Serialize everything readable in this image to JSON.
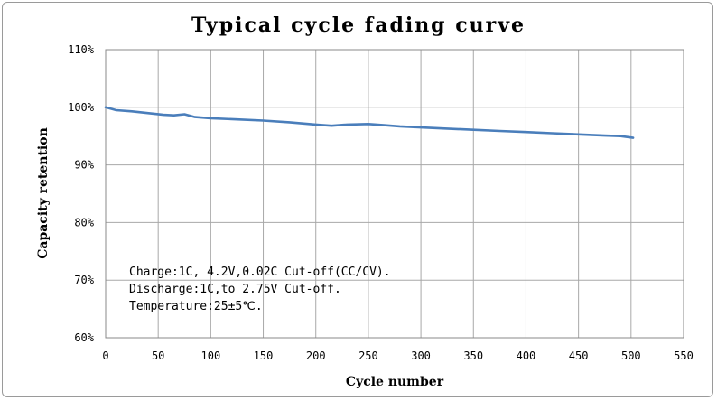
{
  "chart_data": {
    "type": "line",
    "title": "Typical cycle fading curve",
    "xlabel": "Cycle number",
    "ylabel": "Capacity retention",
    "xlim": [
      0,
      550
    ],
    "ylim": [
      60,
      110
    ],
    "x_ticks": [
      0,
      50,
      100,
      150,
      200,
      250,
      300,
      350,
      400,
      450,
      500,
      550
    ],
    "y_ticks": [
      60,
      70,
      80,
      90,
      100,
      110
    ],
    "y_tick_labels": [
      "60%",
      "70%",
      "80%",
      "90%",
      "100%",
      "110%"
    ],
    "grid": true,
    "series": [
      {
        "name": "Capacity retention",
        "color": "#4a7ebb",
        "x": [
          0,
          10,
          25,
          40,
          55,
          65,
          75,
          85,
          100,
          125,
          150,
          175,
          200,
          215,
          230,
          250,
          265,
          280,
          300,
          325,
          350,
          375,
          400,
          425,
          450,
          475,
          490,
          502
        ],
        "y": [
          100.0,
          99.5,
          99.3,
          99.0,
          98.7,
          98.6,
          98.8,
          98.3,
          98.1,
          97.9,
          97.7,
          97.4,
          97.0,
          96.8,
          97.0,
          97.1,
          96.9,
          96.7,
          96.5,
          96.3,
          96.1,
          95.9,
          95.7,
          95.5,
          95.3,
          95.1,
          95.0,
          94.7
        ]
      }
    ],
    "annotations": [
      "Charge:1C, 4.2V,0.02C Cut-off(CC/CV).",
      "Discharge:1C,to 2.75V Cut-off.",
      "Temperature:25±5℃."
    ]
  }
}
